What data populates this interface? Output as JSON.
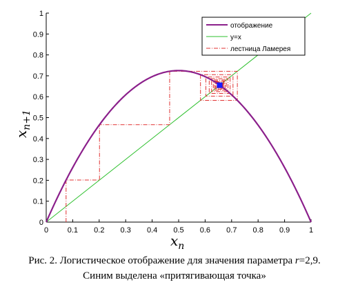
{
  "chart_data": {
    "type": "line",
    "xlabel_base": "x",
    "xlabel_sub": "n",
    "ylabel_base": "x",
    "ylabel_sub": "n+1",
    "xlim": [
      0,
      1
    ],
    "ylim": [
      0,
      1
    ],
    "xticks": [
      "0",
      "0.1",
      "0.2",
      "0.3",
      "0.4",
      "0.5",
      "0.6",
      "0.7",
      "0.8",
      "0.9",
      "1"
    ],
    "yticks": [
      "0",
      "0.1",
      "0.2",
      "0.3",
      "0.4",
      "0.5",
      "0.6",
      "0.7",
      "0.8",
      "0.9",
      "1"
    ],
    "grid": false,
    "legend_position": "top-right",
    "r": 2.9,
    "x0": 0.075,
    "staircase_steps": 60,
    "fixed_point": [
      0.655,
      0.655
    ],
    "series": [
      {
        "name": "отображение",
        "kind": "parabola",
        "formula": "r*x*(1-x)",
        "color": "#8b1f8b"
      },
      {
        "name": "y=x",
        "kind": "diagonal",
        "color": "#2ec02e"
      },
      {
        "name": "лестница Ламерея",
        "kind": "cobweb",
        "color": "#e03030"
      }
    ],
    "highlight_color": "#1a1aff"
  },
  "caption": {
    "line1_a": "Рис. 2. Логистическое отображение для значения параметра ",
    "line1_r": "r",
    "line1_b": "=2,9.",
    "line2": "Синим выделена «притягивающая точка»"
  }
}
